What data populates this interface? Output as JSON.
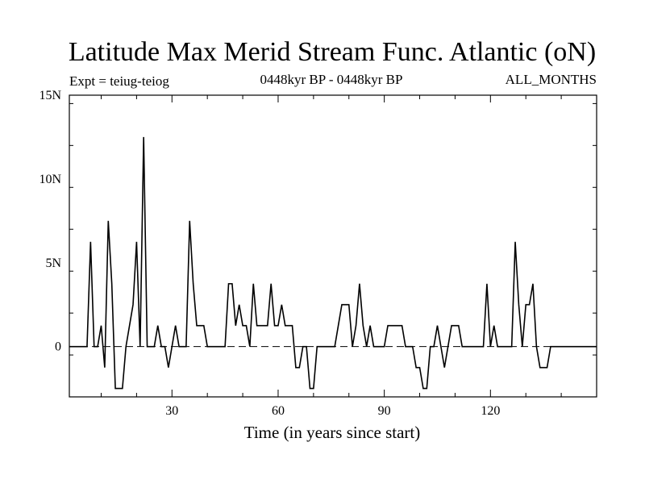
{
  "chart_data": {
    "type": "line",
    "title": "Latitude Max Merid Stream Func. Atlantic (oN)",
    "subtitle_left": "Expt = teiug-teiog",
    "subtitle_center": "0448kyr BP - 0448kyr BP",
    "subtitle_right": "ALL_MONTHS",
    "xlabel": "Time (in years since start)",
    "ylabel": "",
    "xlim": [
      1,
      150
    ],
    "ylim": [
      -3,
      15
    ],
    "x_ticks": [
      30,
      60,
      90,
      120
    ],
    "x_tick_labels": [
      "30",
      "60",
      "90",
      "120"
    ],
    "y_ticks": [
      0,
      5,
      10,
      15
    ],
    "y_tick_labels": [
      "0",
      "5N",
      "10N",
      "15N"
    ],
    "zero_line": "dashed",
    "series": [
      {
        "name": "Latitude Max",
        "x": [
          1,
          2,
          3,
          4,
          5,
          6,
          7,
          8,
          9,
          10,
          11,
          12,
          13,
          14,
          15,
          16,
          17,
          18,
          19,
          20,
          21,
          22,
          23,
          24,
          25,
          26,
          27,
          28,
          29,
          30,
          31,
          32,
          33,
          34,
          35,
          36,
          37,
          38,
          39,
          40,
          41,
          42,
          43,
          44,
          45,
          46,
          47,
          48,
          49,
          50,
          51,
          52,
          53,
          54,
          55,
          56,
          57,
          58,
          59,
          60,
          61,
          62,
          63,
          64,
          65,
          66,
          67,
          68,
          69,
          70,
          71,
          72,
          73,
          74,
          75,
          76,
          77,
          78,
          79,
          80,
          81,
          82,
          83,
          84,
          85,
          86,
          87,
          88,
          89,
          90,
          91,
          92,
          93,
          94,
          95,
          96,
          97,
          98,
          99,
          100,
          101,
          102,
          103,
          104,
          105,
          106,
          107,
          108,
          109,
          110,
          111,
          112,
          113,
          114,
          115,
          116,
          117,
          118,
          119,
          120,
          121,
          122,
          123,
          124,
          125,
          126,
          127,
          128,
          129,
          130,
          131,
          132,
          133,
          134,
          135,
          136,
          137,
          138,
          139,
          140,
          141,
          142,
          143,
          144,
          145,
          146,
          147,
          148,
          149,
          150
        ],
        "values": [
          0,
          0,
          0,
          0,
          0,
          0,
          6.25,
          0,
          0,
          1.25,
          -1.25,
          7.5,
          3.75,
          -2.5,
          -2.5,
          -2.5,
          0,
          1.25,
          2.5,
          6.25,
          0,
          12.5,
          0,
          0,
          0,
          1.25,
          0,
          0,
          -1.25,
          0,
          1.25,
          0,
          0,
          0,
          7.5,
          3.75,
          1.25,
          1.25,
          1.25,
          0,
          0,
          0,
          0,
          0,
          0,
          3.75,
          3.75,
          1.25,
          2.5,
          1.25,
          1.25,
          0,
          3.75,
          1.25,
          1.25,
          1.25,
          1.25,
          3.75,
          1.25,
          1.25,
          2.5,
          1.25,
          1.25,
          1.25,
          -1.25,
          -1.25,
          0,
          0,
          -2.5,
          -2.5,
          0,
          0,
          0,
          0,
          0,
          0,
          1.25,
          2.5,
          2.5,
          2.5,
          0,
          1.25,
          3.75,
          1.25,
          0,
          1.25,
          0,
          0,
          0,
          0,
          1.25,
          1.25,
          1.25,
          1.25,
          1.25,
          0,
          0,
          0,
          -1.25,
          -1.25,
          -2.5,
          -2.5,
          0,
          0,
          1.25,
          0,
          -1.25,
          0,
          1.25,
          1.25,
          1.25,
          0,
          0,
          0,
          0,
          0,
          0,
          0,
          3.75,
          0,
          1.25,
          0,
          0,
          0,
          0,
          0,
          6.25,
          2.5,
          0,
          2.5,
          2.5,
          3.75,
          0,
          -1.25,
          -1.25,
          -1.25,
          0,
          0,
          0,
          0,
          0,
          0,
          0,
          0,
          0,
          0,
          0,
          0,
          0,
          0
        ]
      }
    ]
  }
}
